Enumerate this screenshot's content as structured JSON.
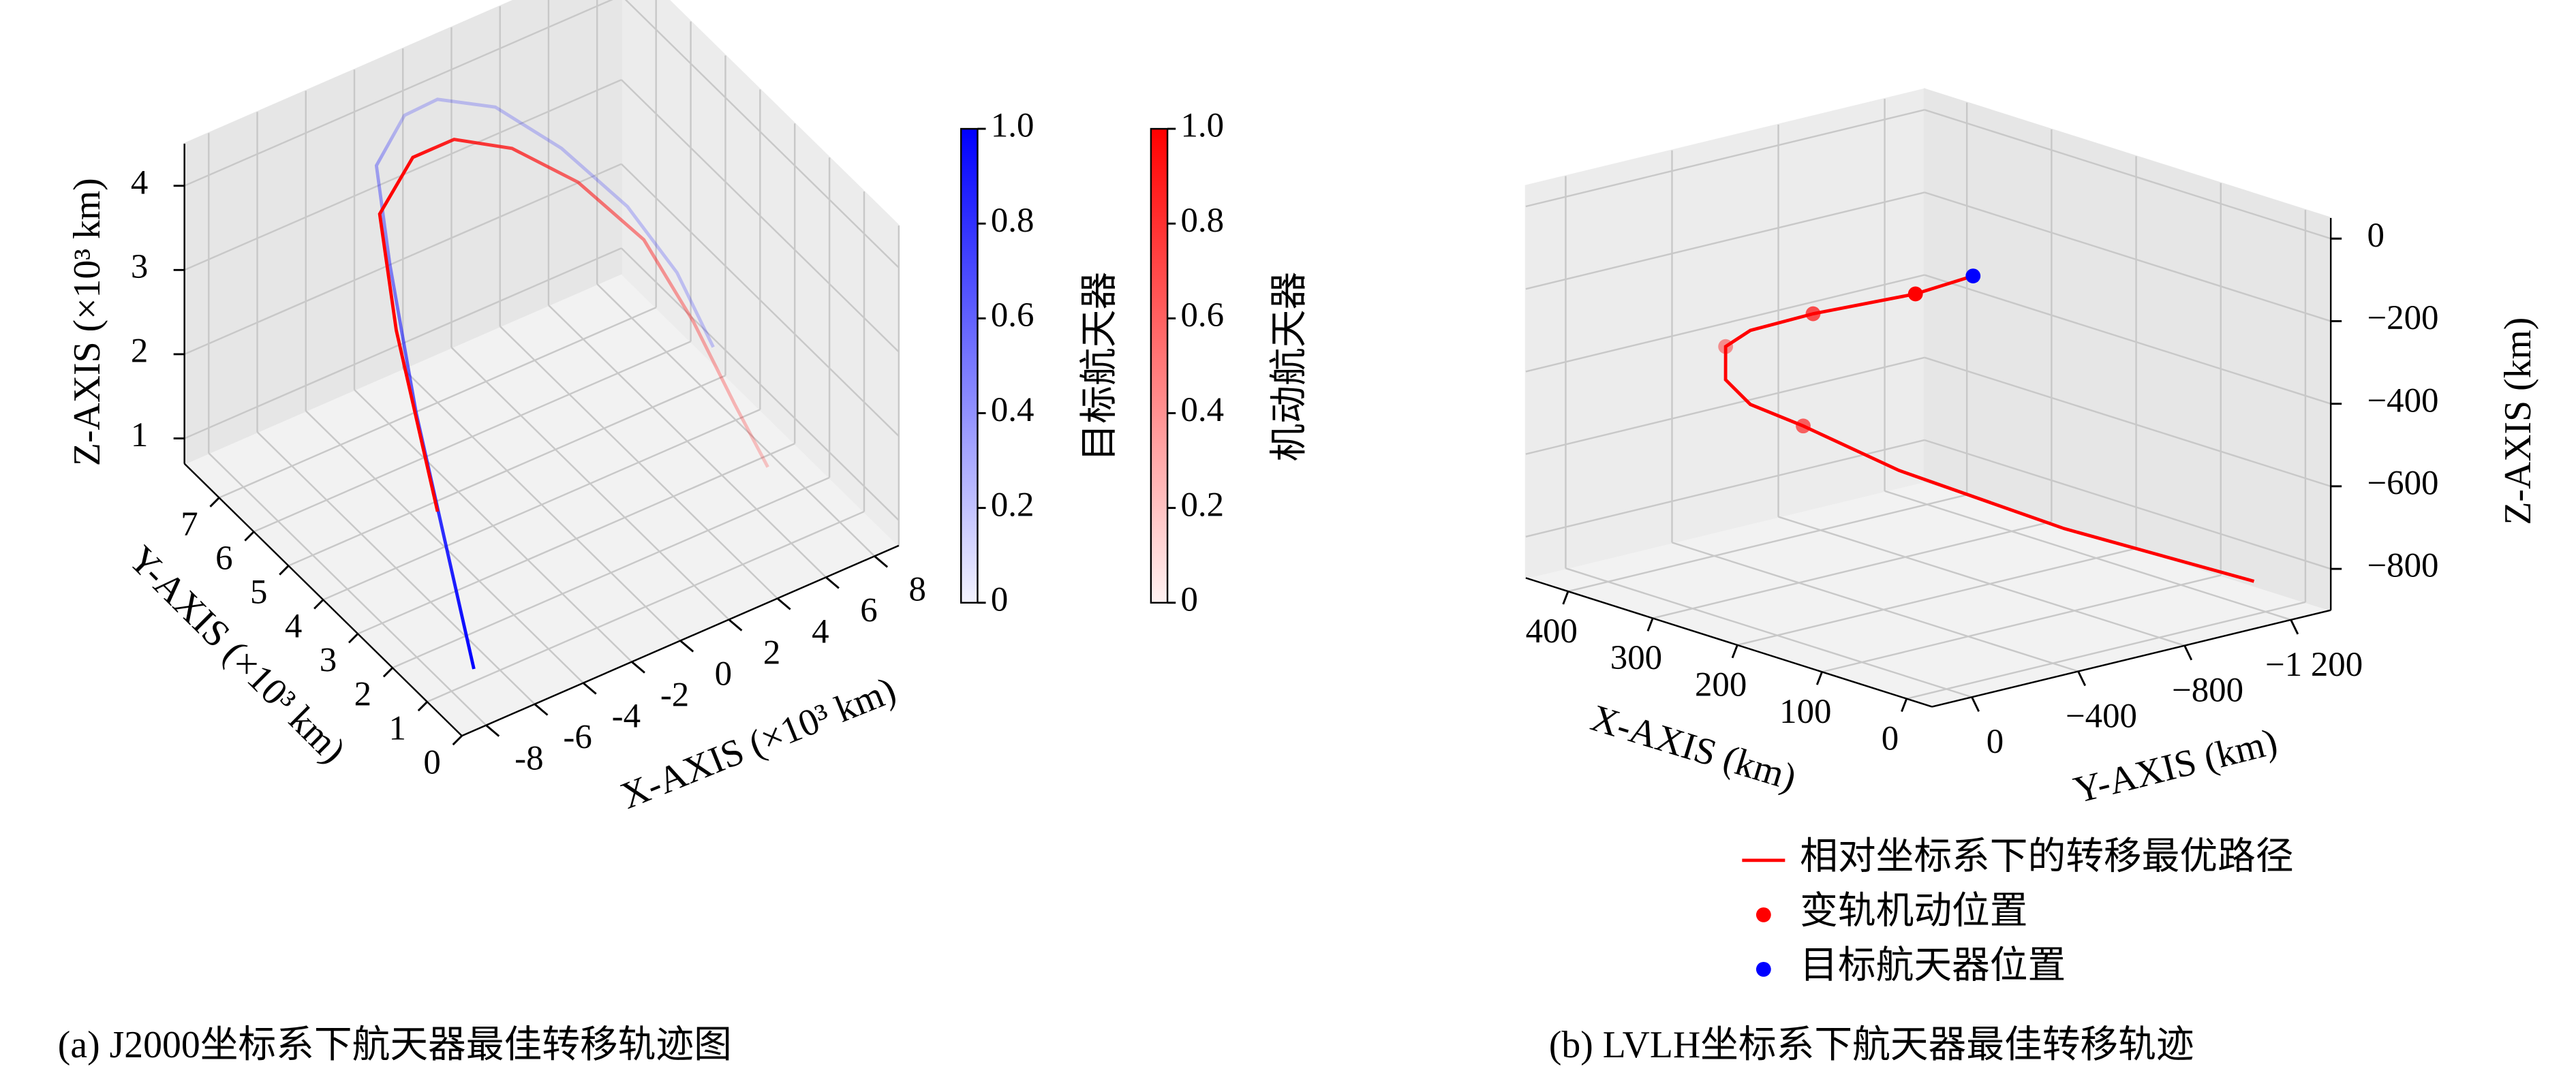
{
  "chart_data": [
    {
      "type": "line3d",
      "caption": "(a) J2000坐标系下航天器最佳转移轨迹图",
      "xlabel": "X-AXIS (×10³ km)",
      "ylabel": "Y-AXIS (×10³ km)",
      "zlabel": "Z-AXIS (×10³ km)",
      "xlim": [
        -9,
        9
      ],
      "ylim": [
        0,
        8
      ],
      "zlim": [
        0.7,
        4.5
      ],
      "xticks": [
        -8,
        -6,
        -4,
        -2,
        0,
        2,
        4,
        6,
        8
      ],
      "yticks": [
        0,
        1,
        2,
        3,
        4,
        5,
        6,
        7
      ],
      "zticks": [
        1,
        2,
        3,
        4
      ],
      "grid": true,
      "colorbar_lim": [
        0,
        1
      ],
      "colorbar_ticks": [
        0,
        0.2,
        0.4,
        0.6,
        0.8,
        {
          "value": 1,
          "label": "1.0"
        }
      ],
      "series": [
        {
          "name": "目标航天器",
          "color": "#0000ff",
          "mode": "line",
          "x": [
            -7.79,
            -6.8,
            -5.17,
            -3.4,
            -2.52,
            -0.65,
            0.71,
            2.38,
            4.39,
            6.39,
            7.72,
            8.5
          ],
          "y": [
            0.5,
            2,
            4,
            6,
            7,
            7.5,
            7.5,
            7,
            6.5,
            6,
            5.5,
            5
          ],
          "z": [
            1.14,
            1.88,
            2.44,
            3.18,
            3.83,
            3.99,
            4.01,
            3.91,
            3.37,
            2.63,
            1.88,
            1.1
          ]
        },
        {
          "name": "机动航天器",
          "color": "#ff0000",
          "mode": "line",
          "x": [
            -6.43,
            -4.56,
            -3.1,
            -1.02,
            0.68,
            2.78,
            4.93,
            7.07,
            8.4,
            7.96,
            7.89
          ],
          "y": [
            2.5,
            5,
            6.5,
            7,
            7,
            6.8,
            6.4,
            6,
            5.5,
            4,
            3
          ],
          "z": [
            2.03,
            2.94,
            3.53,
            3.74,
            3.74,
            3.45,
            2.94,
            2.15,
            1.21,
            0.89,
            0.56
          ]
        }
      ]
    },
    {
      "type": "line3d",
      "caption": "(b) LVLH坐标系下航天器最佳转移轨迹",
      "xlabel": "X-AXIS (km)",
      "ylabel": "Y-AXIS (km)",
      "zlabel": "Z-AXIS (km)",
      "xlim": [
        -30,
        450
      ],
      "ylim": [
        -1350,
        150
      ],
      "zlim": [
        -900,
        50
      ],
      "xticks": [
        0,
        100,
        200,
        300,
        400
      ],
      "yticks": [
        0,
        {
          "value": -400,
          "label": "−400"
        },
        {
          "value": -800,
          "label": "−800"
        },
        {
          "value": -1200,
          "label": "−1 200"
        }
      ],
      "zticks": [
        {
          "value": -800,
          "label": "−800"
        },
        {
          "value": -600,
          "label": "−600"
        },
        {
          "value": -400,
          "label": "−400"
        },
        {
          "value": -200,
          "label": "−200"
        },
        0
      ],
      "grid": true,
      "legend": "lower center",
      "series": [
        {
          "name": "相对坐标系下的转移最优路径",
          "color": "#ff0000",
          "mode": "line",
          "x": [
            0,
            61.8,
            176.5,
            247.5,
            276.7,
            279.9,
            256.9,
            207,
            150.4,
            49.5,
            -17.8
          ],
          "y": [
            -100,
            -80,
            -60,
            -50,
            -50,
            -60,
            -80,
            -120,
            -300,
            -600,
            -1100
          ],
          "z": [
            85,
            4.5,
            -115,
            -200,
            -258,
            -342,
            -390,
            -416,
            -515,
            -637,
            -799
          ]
        },
        {
          "name": "变轨机动位置",
          "color": "#ff0000",
          "mode": "markers",
          "x": [
            61.8,
            176.5,
            276.7,
            207
          ],
          "y": [
            -80,
            -60,
            -50,
            -120
          ],
          "z": [
            4.5,
            -115,
            -258,
            -416
          ]
        },
        {
          "name": "目标航天器位置",
          "color": "#0000ff",
          "mode": "markers",
          "x": [
            0
          ],
          "y": [
            -100
          ],
          "z": [
            85
          ]
        }
      ]
    }
  ]
}
